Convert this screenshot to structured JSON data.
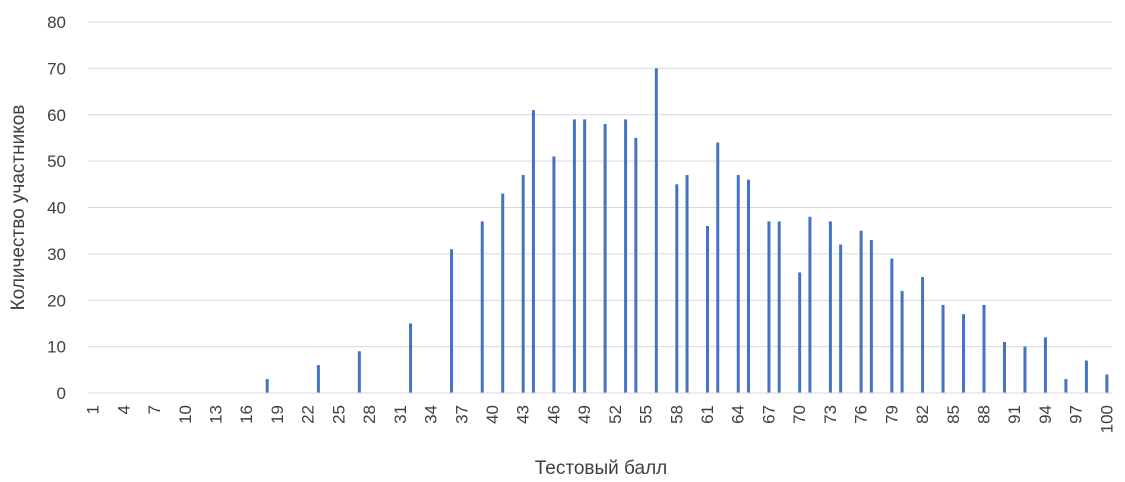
{
  "chart_data": {
    "type": "bar",
    "xlabel": "Тестовый балл",
    "ylabel": "Количество участников",
    "ylim": [
      0,
      80
    ],
    "yticks": [
      0,
      10,
      20,
      30,
      40,
      50,
      60,
      70,
      80
    ],
    "xrange": [
      1,
      100
    ],
    "xticks": [
      1,
      4,
      7,
      10,
      13,
      16,
      19,
      22,
      25,
      28,
      31,
      34,
      37,
      40,
      43,
      46,
      49,
      52,
      55,
      58,
      61,
      64,
      67,
      70,
      73,
      76,
      79,
      82,
      85,
      88,
      91,
      94,
      97,
      100
    ],
    "grid": true,
    "bar_color": "#4472C4",
    "points": [
      {
        "x": 18,
        "y": 3
      },
      {
        "x": 23,
        "y": 6
      },
      {
        "x": 27,
        "y": 9
      },
      {
        "x": 32,
        "y": 15
      },
      {
        "x": 36,
        "y": 31
      },
      {
        "x": 39,
        "y": 37
      },
      {
        "x": 41,
        "y": 43
      },
      {
        "x": 43,
        "y": 47
      },
      {
        "x": 44,
        "y": 61
      },
      {
        "x": 46,
        "y": 51
      },
      {
        "x": 48,
        "y": 59
      },
      {
        "x": 49,
        "y": 59
      },
      {
        "x": 51,
        "y": 58
      },
      {
        "x": 53,
        "y": 59
      },
      {
        "x": 54,
        "y": 55
      },
      {
        "x": 56,
        "y": 70
      },
      {
        "x": 58,
        "y": 45
      },
      {
        "x": 59,
        "y": 47
      },
      {
        "x": 61,
        "y": 36
      },
      {
        "x": 62,
        "y": 54
      },
      {
        "x": 64,
        "y": 47
      },
      {
        "x": 65,
        "y": 46
      },
      {
        "x": 67,
        "y": 37
      },
      {
        "x": 68,
        "y": 37
      },
      {
        "x": 70,
        "y": 26
      },
      {
        "x": 71,
        "y": 38
      },
      {
        "x": 73,
        "y": 37
      },
      {
        "x": 74,
        "y": 32
      },
      {
        "x": 76,
        "y": 35
      },
      {
        "x": 77,
        "y": 33
      },
      {
        "x": 79,
        "y": 29
      },
      {
        "x": 80,
        "y": 22
      },
      {
        "x": 82,
        "y": 25
      },
      {
        "x": 84,
        "y": 19
      },
      {
        "x": 86,
        "y": 17
      },
      {
        "x": 88,
        "y": 19
      },
      {
        "x": 90,
        "y": 11
      },
      {
        "x": 92,
        "y": 10
      },
      {
        "x": 94,
        "y": 12
      },
      {
        "x": 96,
        "y": 3
      },
      {
        "x": 98,
        "y": 7
      },
      {
        "x": 100,
        "y": 4
      }
    ]
  }
}
